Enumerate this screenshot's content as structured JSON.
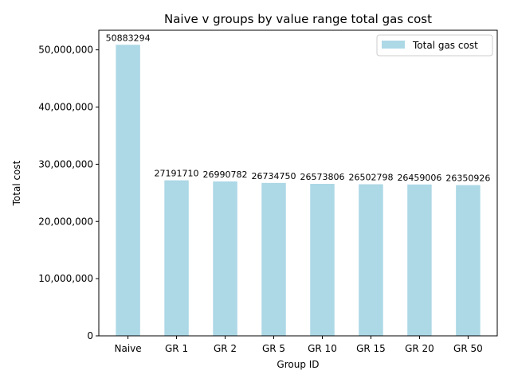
{
  "chart_data": {
    "type": "bar",
    "title": "Naive v groups by value range total gas cost",
    "xlabel": "Group ID",
    "ylabel": "Total cost",
    "categories": [
      "Naive",
      "GR 1",
      "GR 2",
      "GR 5",
      "GR 10",
      "GR 15",
      "GR 20",
      "GR 50"
    ],
    "series": [
      {
        "name": "Total gas cost",
        "values": [
          50883294,
          27191710,
          26990782,
          26734750,
          26573806,
          26502798,
          26459006,
          26350926
        ],
        "color": "#add8e6"
      }
    ],
    "data_labels": [
      "50883294",
      "27191710",
      "26990782",
      "26734750",
      "26573806",
      "26502798",
      "26459006",
      "26350926"
    ],
    "yticks": [
      0,
      10000000,
      20000000,
      30000000,
      40000000,
      50000000
    ],
    "ytick_labels": [
      "0",
      "10,000,000",
      "20,000,000",
      "30,000,000",
      "40,000,000",
      "50,000,000"
    ],
    "ylim": [
      0,
      53427459
    ],
    "grid": false,
    "legend_position": "top-right"
  }
}
